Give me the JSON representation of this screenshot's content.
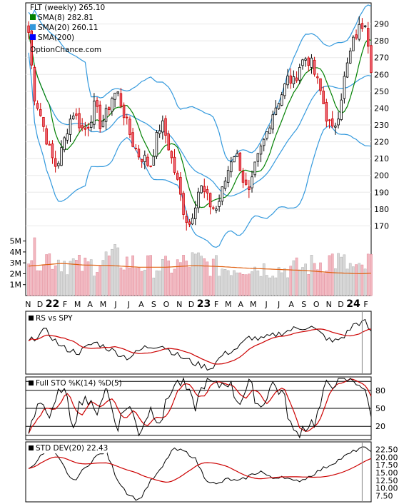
{
  "chart_data": {
    "type": "stock-panels",
    "price_panel": {
      "title": "FLT (weekly) 265.10",
      "watermark": "OptionChance.com",
      "ylim": [
        160,
        300
      ],
      "y_ticks": [
        "170",
        "180",
        "190",
        "200",
        "210",
        "220",
        "230",
        "240",
        "250",
        "260",
        "270",
        "280",
        "290"
      ],
      "legend": [
        {
          "label": "SMA(8) 282.81",
          "color": "#008000"
        },
        {
          "label": "SMA(20) 260.11",
          "color": "#3399dd"
        },
        {
          "label": "SMA(200)",
          "color": "#0000ff"
        }
      ],
      "anchors": [
        [
          0,
          285
        ],
        [
          1,
          248
        ],
        [
          2,
          238
        ],
        [
          3,
          225
        ],
        [
          4,
          212
        ],
        [
          5,
          205
        ],
        [
          6,
          215
        ],
        [
          7,
          228
        ],
        [
          8,
          238
        ],
        [
          9,
          232
        ],
        [
          10,
          226
        ],
        [
          11,
          232
        ],
        [
          12,
          242
        ],
        [
          13,
          230
        ],
        [
          14,
          236
        ],
        [
          15,
          246
        ],
        [
          16,
          250
        ],
        [
          17,
          240
        ],
        [
          18,
          228
        ],
        [
          19,
          218
        ],
        [
          20,
          212
        ],
        [
          21,
          210
        ],
        [
          22,
          205
        ],
        [
          23,
          220
        ],
        [
          24,
          232
        ],
        [
          25,
          222
        ],
        [
          26,
          208
        ],
        [
          27,
          195
        ],
        [
          28,
          180
        ],
        [
          29,
          170
        ],
        [
          30,
          182
        ],
        [
          31,
          194
        ],
        [
          32,
          188
        ],
        [
          33,
          182
        ],
        [
          34,
          180
        ],
        [
          35,
          190
        ],
        [
          36,
          202
        ],
        [
          37,
          214
        ],
        [
          38,
          210
        ],
        [
          39,
          195
        ],
        [
          40,
          188
        ],
        [
          41,
          205
        ],
        [
          42,
          215
        ],
        [
          43,
          224
        ],
        [
          44,
          236
        ],
        [
          45,
          243
        ],
        [
          46,
          250
        ],
        [
          47,
          258
        ],
        [
          48,
          255
        ],
        [
          49,
          265
        ],
        [
          50,
          270
        ],
        [
          51,
          268
        ],
        [
          52,
          258
        ],
        [
          53,
          248
        ],
        [
          54,
          234
        ],
        [
          55,
          226
        ],
        [
          56,
          236
        ],
        [
          57,
          255
        ],
        [
          58,
          270
        ],
        [
          59,
          282
        ],
        [
          60,
          288
        ],
        [
          61,
          293
        ],
        [
          62,
          265
        ]
      ]
    },
    "volume_panel": {
      "y_ticks": [
        "5M",
        "4M",
        "3M",
        "2M",
        "1M"
      ],
      "ylim": [
        0,
        5.5
      ],
      "anchors": [
        [
          0,
          3.9
        ],
        [
          5,
          3.4
        ],
        [
          10,
          2.6
        ],
        [
          15,
          3.5
        ],
        [
          20,
          2.8
        ],
        [
          25,
          2.6
        ],
        [
          30,
          3.2
        ],
        [
          35,
          2.5
        ],
        [
          40,
          2.7
        ],
        [
          45,
          2.4
        ],
        [
          50,
          2.6
        ],
        [
          55,
          3.4
        ],
        [
          60,
          2.2
        ],
        [
          62,
          3.2
        ]
      ],
      "avg_anchors": [
        [
          0,
          2.7
        ],
        [
          6,
          2.95
        ],
        [
          10,
          2.8
        ],
        [
          15,
          2.75
        ],
        [
          20,
          2.6
        ],
        [
          25,
          2.6
        ],
        [
          30,
          2.75
        ],
        [
          35,
          2.65
        ],
        [
          40,
          2.5
        ],
        [
          45,
          2.4
        ],
        [
          50,
          2.3
        ],
        [
          55,
          2.1
        ],
        [
          60,
          2.0
        ],
        [
          62,
          2.05
        ]
      ]
    },
    "x_axis": {
      "labels": [
        {
          "t": "N",
          "i": 0.8
        },
        {
          "t": "D",
          "i": 4.8
        },
        {
          "t": "22",
          "i": 9.0,
          "bold": true
        },
        {
          "t": "F",
          "i": 13.2
        },
        {
          "t": "M",
          "i": 17.4
        },
        {
          "t": "A",
          "i": 21.6
        },
        {
          "t": "M",
          "i": 26.0
        },
        {
          "t": "J",
          "i": 30.2
        },
        {
          "t": "J",
          "i": 34.6
        },
        {
          "t": "A",
          "i": 38.8
        },
        {
          "t": "S",
          "i": 43.0
        },
        {
          "t": "O",
          "i": 47.2
        },
        {
          "t": "N",
          "i": 51.6
        },
        {
          "t": "D",
          "i": 55.6
        },
        {
          "t": "23",
          "i": 59.8,
          "bold": true
        },
        {
          "t": "F",
          "i": 64.0
        },
        {
          "t": "M",
          "i": 68.0
        },
        {
          "t": "A",
          "i": 72.2
        },
        {
          "t": "M",
          "i": 76.4
        },
        {
          "t": "J",
          "i": 80.8
        },
        {
          "t": "J",
          "i": 85.0
        },
        {
          "t": "A",
          "i": 89.2
        },
        {
          "t": "S",
          "i": 93.4
        },
        {
          "t": "O",
          "i": 97.6
        },
        {
          "t": "N",
          "i": 101.8
        },
        {
          "t": "D",
          "i": 105.8
        },
        {
          "t": "24",
          "i": 110.0,
          "bold": true
        },
        {
          "t": "F",
          "i": 114.2
        }
      ],
      "max_index": 116
    },
    "rs_panel": {
      "label": "RS vs SPY",
      "anchors": [
        [
          0,
          0.55
        ],
        [
          3,
          0.78
        ],
        [
          6,
          0.45
        ],
        [
          9,
          0.35
        ],
        [
          12,
          0.55
        ],
        [
          15,
          0.4
        ],
        [
          18,
          0.25
        ],
        [
          21,
          0.45
        ],
        [
          24,
          0.5
        ],
        [
          27,
          0.3
        ],
        [
          30,
          0.15
        ],
        [
          33,
          0.05
        ],
        [
          35,
          0.3
        ],
        [
          38,
          0.45
        ],
        [
          40,
          0.65
        ],
        [
          42,
          0.6
        ],
        [
          45,
          0.7
        ],
        [
          48,
          0.8
        ],
        [
          51,
          0.85
        ],
        [
          53,
          0.7
        ],
        [
          55,
          0.55
        ],
        [
          57,
          0.65
        ],
        [
          59,
          0.9
        ],
        [
          61,
          0.93
        ],
        [
          62,
          0.72
        ]
      ]
    },
    "sto_panel": {
      "label": "Full STO %K(14) %D(5)",
      "y_ticks": [
        "80",
        "50",
        "20"
      ],
      "anchors": [
        [
          0,
          0.1
        ],
        [
          2,
          0.7
        ],
        [
          4,
          0.3
        ],
        [
          6,
          0.9
        ],
        [
          8,
          0.25
        ],
        [
          10,
          0.75
        ],
        [
          12,
          0.4
        ],
        [
          14,
          0.85
        ],
        [
          16,
          0.2
        ],
        [
          18,
          0.6
        ],
        [
          20,
          0.1
        ],
        [
          22,
          0.5
        ],
        [
          24,
          0.3
        ],
        [
          26,
          0.88
        ],
        [
          28,
          0.95
        ],
        [
          30,
          0.5
        ],
        [
          32,
          0.98
        ],
        [
          34,
          0.85
        ],
        [
          36,
          0.98
        ],
        [
          38,
          0.6
        ],
        [
          40,
          0.9
        ],
        [
          42,
          0.5
        ],
        [
          44,
          0.92
        ],
        [
          46,
          0.75
        ],
        [
          48,
          0.05
        ],
        [
          50,
          0.2
        ],
        [
          52,
          0.3
        ],
        [
          54,
          0.9
        ],
        [
          56,
          0.98
        ],
        [
          58,
          0.98
        ],
        [
          60,
          0.95
        ],
        [
          62,
          0.45
        ]
      ]
    },
    "std_panel": {
      "label": "STD DEV(20) 22.43",
      "y_ticks": [
        "22.50",
        "20.00",
        "17.50",
        "15.00",
        "12.50",
        "10.00",
        "7.50"
      ],
      "ylim": [
        5.5,
        24.5
      ],
      "anchors": [
        [
          0,
          16
        ],
        [
          2,
          20
        ],
        [
          4,
          23
        ],
        [
          6,
          18
        ],
        [
          8,
          12
        ],
        [
          10,
          16
        ],
        [
          12,
          20
        ],
        [
          14,
          22
        ],
        [
          16,
          13
        ],
        [
          18,
          8
        ],
        [
          20,
          6
        ],
        [
          22,
          12
        ],
        [
          24,
          16
        ],
        [
          26,
          22.5
        ],
        [
          28,
          22
        ],
        [
          30,
          20
        ],
        [
          32,
          13
        ],
        [
          34,
          11
        ],
        [
          36,
          13
        ],
        [
          38,
          12
        ],
        [
          40,
          14
        ],
        [
          42,
          15.5
        ],
        [
          44,
          13
        ],
        [
          46,
          14
        ],
        [
          48,
          12
        ],
        [
          50,
          13
        ],
        [
          52,
          15
        ],
        [
          54,
          17
        ],
        [
          56,
          19
        ],
        [
          58,
          21
        ],
        [
          60,
          23
        ],
        [
          62,
          22.4
        ]
      ]
    }
  }
}
